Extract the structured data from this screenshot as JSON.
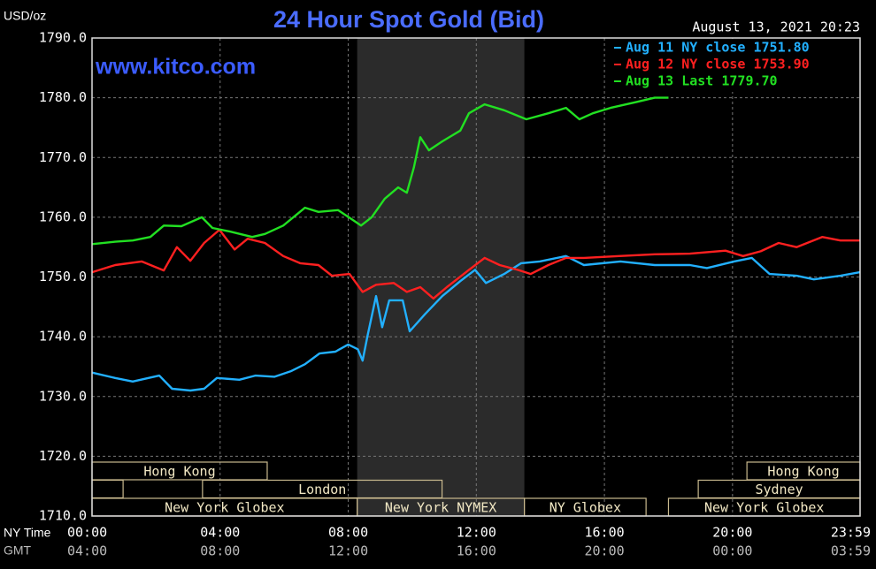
{
  "chart_data": {
    "type": "line",
    "title": "24 Hour Spot Gold (Bid)",
    "y_label": "USD/oz",
    "timestamp": "August 13, 2021 20:23",
    "annotation": "www.kitco.com",
    "x_row_labels": [
      "NY Time",
      "GMT"
    ],
    "xlim": [
      0,
      23.983
    ],
    "xticks": [
      {
        "value": 0,
        "label": "00:00"
      },
      {
        "value": 4,
        "label": "04:00"
      },
      {
        "value": 8,
        "label": "08:00"
      },
      {
        "value": 12,
        "label": "12:00"
      },
      {
        "value": 16,
        "label": "16:00"
      },
      {
        "value": 20,
        "label": "20:00"
      },
      {
        "value": 23.983,
        "label": "23:59"
      }
    ],
    "gmt_labels": [
      "04:00",
      "08:00",
      "12:00",
      "16:00",
      "20:00",
      "00:00",
      "03:59"
    ],
    "ylim": [
      1710,
      1790
    ],
    "yticks": [
      {
        "value": 1710,
        "label": "1710.0"
      },
      {
        "value": 1720,
        "label": "1720.0"
      },
      {
        "value": 1730,
        "label": "1730.0"
      },
      {
        "value": 1740,
        "label": "1740.0"
      },
      {
        "value": 1750,
        "label": "1750.0"
      },
      {
        "value": 1760,
        "label": "1760.0"
      },
      {
        "value": 1770,
        "label": "1770.0"
      },
      {
        "value": 1780,
        "label": "1780.0"
      },
      {
        "value": 1790,
        "label": "1790.0"
      }
    ],
    "grid": true,
    "legend": "top-right",
    "shaded_region": [
      8.28,
      13.5
    ],
    "sessions": [
      [
        {
          "label": "Hong Kong",
          "start": 0,
          "end": 5.47
        },
        {
          "label": "Hong Kong",
          "start": 20.45,
          "end": 23.983
        }
      ],
      [
        {
          "label": null,
          "start": 0,
          "end": 0.97
        },
        {
          "label": "London",
          "start": 3.45,
          "end": 10.93
        },
        {
          "label": "Sydney",
          "start": 18.93,
          "end": 23.983
        }
      ],
      [
        {
          "label": "New York Globex",
          "start": 0,
          "end": 8.28
        },
        {
          "label": "New York NYMEX",
          "start": 8.28,
          "end": 13.5
        },
        {
          "label": "NY Globex",
          "start": 13.5,
          "end": 17.3
        },
        {
          "label": "New York Globex",
          "start": 18.0,
          "end": 23.983
        }
      ]
    ],
    "series": [
      {
        "name": "Aug 11 NY close 1751.80",
        "color": "#22b0ff",
        "x": [
          0,
          0.72,
          1.27,
          2.1,
          2.5,
          3.07,
          3.5,
          3.9,
          4.6,
          5.1,
          5.7,
          6.2,
          6.65,
          7.1,
          7.6,
          8.0,
          8.3,
          8.45,
          8.6,
          8.87,
          9.06,
          9.28,
          9.7,
          9.92,
          10.4,
          10.94,
          11.5,
          11.96,
          12.3,
          12.87,
          13.4,
          13.98,
          14.8,
          15.36,
          16.5,
          17.57,
          18.67,
          19.2,
          20.05,
          20.6,
          21.16,
          22.0,
          22.54,
          23.37,
          23.98
        ],
        "values": [
          1734.0,
          1733.1,
          1732.5,
          1733.5,
          1731.3,
          1731.0,
          1731.3,
          1733.1,
          1732.8,
          1733.5,
          1733.3,
          1734.2,
          1735.4,
          1737.2,
          1737.5,
          1738.7,
          1737.9,
          1736.0,
          1740.1,
          1746.8,
          1741.6,
          1746.1,
          1746.1,
          1740.9,
          1743.8,
          1746.8,
          1749.3,
          1751.2,
          1749.0,
          1750.5,
          1752.3,
          1752.6,
          1753.5,
          1752.0,
          1752.6,
          1752.0,
          1752.0,
          1751.5,
          1752.6,
          1753.2,
          1750.5,
          1750.2,
          1749.6,
          1750.2,
          1750.8
        ]
      },
      {
        "name": "Aug 12 NY close 1753.90",
        "color": "#ff2020",
        "x": [
          0,
          0.72,
          1.55,
          2.24,
          2.65,
          3.07,
          3.5,
          3.98,
          4.45,
          4.86,
          5.4,
          5.97,
          6.5,
          7.07,
          7.49,
          8.04,
          8.45,
          8.87,
          9.42,
          9.83,
          10.25,
          10.66,
          11.08,
          11.77,
          12.26,
          12.73,
          13.29,
          13.7,
          14.25,
          14.8,
          15.36,
          16.46,
          17.57,
          18.67,
          19.78,
          20.33,
          20.88,
          21.44,
          22.0,
          22.8,
          23.37,
          23.98
        ],
        "values": [
          1750.8,
          1752.0,
          1752.6,
          1751.1,
          1755.0,
          1752.7,
          1755.7,
          1757.9,
          1754.6,
          1756.4,
          1755.7,
          1753.5,
          1752.3,
          1752.0,
          1750.2,
          1750.5,
          1747.5,
          1748.7,
          1749.0,
          1747.5,
          1748.3,
          1746.4,
          1748.3,
          1751.2,
          1753.2,
          1752.0,
          1751.2,
          1750.5,
          1752.0,
          1753.2,
          1753.2,
          1753.5,
          1753.8,
          1753.9,
          1754.4,
          1753.5,
          1754.3,
          1755.7,
          1755.0,
          1756.7,
          1756.1,
          1756.1
        ]
      },
      {
        "name": "Aug 13 Last 1779.70",
        "color": "#22e022",
        "x": [
          0,
          0.72,
          1.27,
          1.82,
          2.24,
          2.79,
          3.43,
          3.76,
          4.31,
          5.0,
          5.4,
          5.97,
          6.65,
          7.07,
          7.68,
          8.18,
          8.4,
          8.73,
          9.14,
          9.56,
          9.83,
          10.05,
          10.25,
          10.52,
          10.94,
          11.5,
          11.77,
          12.26,
          12.87,
          13.56,
          14.25,
          14.8,
          15.22,
          15.64,
          16.19,
          17.0,
          17.57,
          18.0
        ],
        "values": [
          1755.5,
          1755.9,
          1756.1,
          1756.7,
          1758.6,
          1758.5,
          1760.0,
          1758.2,
          1757.6,
          1756.7,
          1757.2,
          1758.6,
          1761.6,
          1760.9,
          1761.2,
          1759.4,
          1758.6,
          1760.0,
          1763.1,
          1765.0,
          1764.1,
          1768.3,
          1773.4,
          1771.2,
          1772.7,
          1774.5,
          1777.4,
          1778.9,
          1777.9,
          1776.4,
          1777.4,
          1778.3,
          1776.4,
          1777.4,
          1778.3,
          1779.3,
          1780.0,
          1780.0
        ]
      }
    ]
  }
}
